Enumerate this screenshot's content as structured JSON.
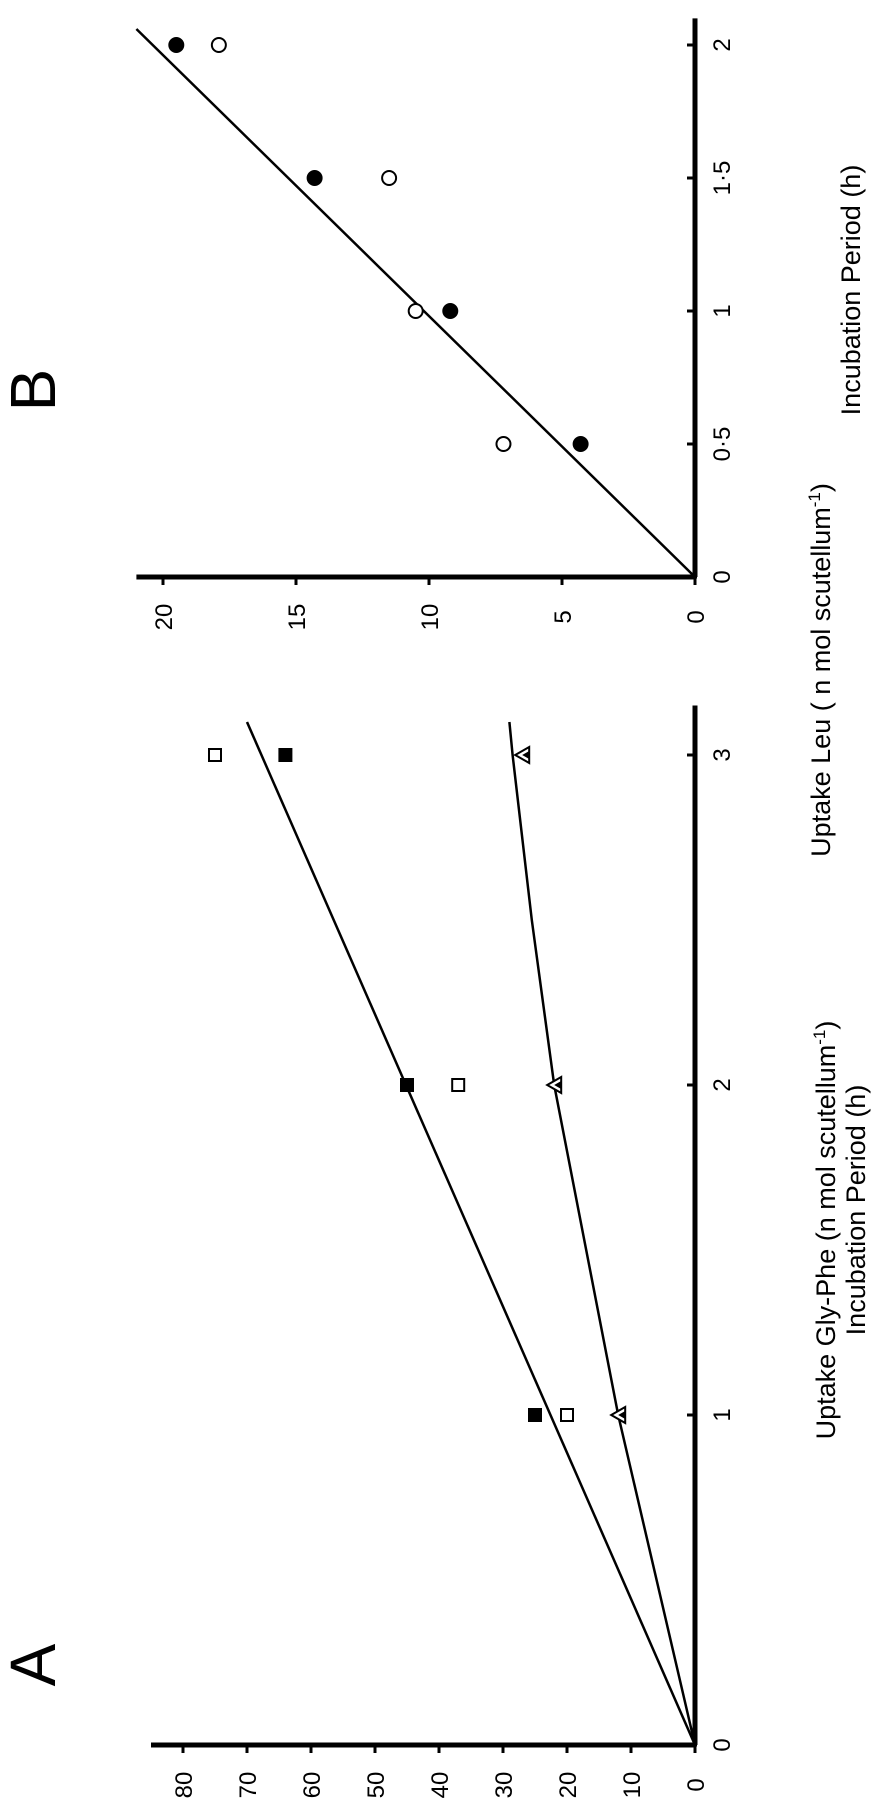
{
  "chart_data": [
    {
      "type": "scatter",
      "panel_label": "A",
      "xlabel": "Incubation Period  (h)",
      "ylabel": "Uptake Gly-Phe (n mol scutellum",
      "ylabel_superscript": "-1",
      "ylabel_close": ")",
      "xlim": [
        0,
        3.15
      ],
      "ylim": [
        0,
        85
      ],
      "x_ticks": [
        0,
        1,
        2,
        3
      ],
      "x_tick_labels": [
        "0",
        "1",
        "2",
        "3"
      ],
      "y_ticks": [
        0,
        10,
        20,
        30,
        40,
        50,
        60,
        70,
        80
      ],
      "y_tick_labels": [
        "0",
        "10",
        "20",
        "30",
        "40",
        "50",
        "60",
        "70",
        "80"
      ],
      "grid": false,
      "series": [
        {
          "marker": "filled-square",
          "x": [
            1,
            2,
            3
          ],
          "y": [
            25,
            45,
            64
          ]
        },
        {
          "marker": "open-square",
          "x": [
            1,
            2,
            3
          ],
          "y": [
            20,
            37,
            75
          ]
        },
        {
          "marker": "half-filled-triangle",
          "x": [
            1,
            2,
            3
          ],
          "y": [
            12,
            22,
            27
          ]
        }
      ],
      "fit_lines": [
        {
          "x": [
            0,
            3.1
          ],
          "y": [
            0,
            70
          ]
        },
        {
          "x": [
            0,
            1,
            2,
            2.5,
            3,
            3.1
          ],
          "y": [
            0,
            12,
            22,
            25.5,
            28.5,
            29
          ]
        }
      ]
    },
    {
      "type": "scatter",
      "panel_label": "B",
      "xlabel": "Incubation  Period  (h)",
      "ylabel": "Uptake  Leu  ( n mol  scutellum",
      "ylabel_superscript": "-1",
      "ylabel_close": ")",
      "xlim": [
        0,
        2.1
      ],
      "ylim": [
        0,
        21
      ],
      "x_ticks": [
        0,
        0.5,
        1,
        1.5,
        2
      ],
      "x_tick_labels": [
        "0",
        "0·5",
        "1",
        "1·5",
        "2"
      ],
      "y_ticks": [
        0,
        5,
        10,
        15,
        20
      ],
      "y_tick_labels": [
        "0",
        "5",
        "10",
        "15",
        "20"
      ],
      "grid": false,
      "series": [
        {
          "marker": "filled-circle",
          "x": [
            0.5,
            1,
            1.5,
            2
          ],
          "y": [
            4.3,
            9.2,
            14.3,
            19.5
          ]
        },
        {
          "marker": "open-circle",
          "x": [
            0.5,
            1,
            1.5,
            2
          ],
          "y": [
            7.2,
            10.5,
            11.5,
            17.9
          ]
        }
      ],
      "fit_lines": [
        {
          "x": [
            0,
            2.06
          ],
          "y": [
            0,
            21
          ]
        }
      ]
    }
  ]
}
